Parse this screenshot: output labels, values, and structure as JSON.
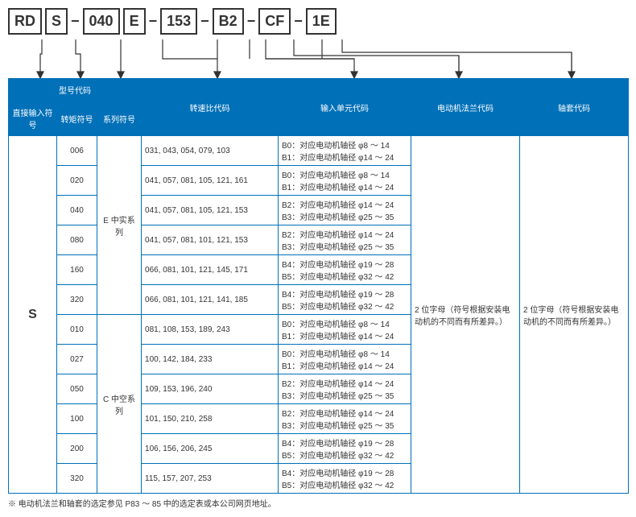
{
  "code_parts": [
    "RD",
    "S",
    "040",
    "E",
    "153",
    "B2",
    "CF",
    "1E"
  ],
  "dash": "−",
  "headers": {
    "group": "型号代码",
    "h1": "直接输入符号",
    "h2": "转矩符号",
    "h3": "系列符号",
    "h4": "转速比代码",
    "h5": "输入单元代码",
    "h6": "电动机法兰代码",
    "h7": "轴套代码"
  },
  "col1_value": "S",
  "series_e": "E 中实系列",
  "series_c": "C 中空系列",
  "flange_note": "2 位字母（符号根据安装电动机的不同而有所差异。）",
  "sleeve_note": "2 位字母（符号根据安装电动机的不同而有所差异。）",
  "rows": [
    {
      "torque": "006",
      "ratio": "031, 043, 054, 079, 103",
      "unit": "B0：对应电动机轴径 φ8 ～ 14\nB1：对应电动机轴径 φ14 ～ 24"
    },
    {
      "torque": "020",
      "ratio": "041, 057, 081, 105, 121, 161",
      "unit": "B0：对应电动机轴径 φ8 ～ 14\nB1：对应电动机轴径 φ14 ～ 24"
    },
    {
      "torque": "040",
      "ratio": "041, 057, 081, 105, 121, 153",
      "unit": "B2：对应电动机轴径 φ14 ～ 24\nB3：对应电动机轴径 φ25 ～ 35"
    },
    {
      "torque": "080",
      "ratio": "041, 057, 081, 101, 121, 153",
      "unit": "B2：对应电动机轴径 φ14 ～ 24\nB3：对应电动机轴径 φ25 ～ 35"
    },
    {
      "torque": "160",
      "ratio": "066, 081, 101, 121, 145, 171",
      "unit": "B4：对应电动机轴径 φ19 ～ 28\nB5：对应电动机轴径 φ32 ～ 42"
    },
    {
      "torque": "320",
      "ratio": "066, 081, 101, 121, 141, 185",
      "unit": "B4：对应电动机轴径 φ19 ～ 28\nB5：对应电动机轴径 φ32 ～ 42"
    },
    {
      "torque": "010",
      "ratio": "081, 108, 153, 189, 243",
      "unit": "B0：对应电动机轴径 φ8 ～ 14\nB1：对应电动机轴径 φ14 ～ 24"
    },
    {
      "torque": "027",
      "ratio": "100, 142, 184,  233",
      "unit": "B0：对应电动机轴径 φ8 ～ 14\nB1：对应电动机轴径 φ14 ～ 24"
    },
    {
      "torque": "050",
      "ratio": "109, 153, 196, 240",
      "unit": "B2：对应电动机轴径 φ14 ～ 24\nB3：对应电动机轴径 φ25 ～ 35"
    },
    {
      "torque": "100",
      "ratio": "101, 150, 210, 258",
      "unit": "B2：对应电动机轴径 φ14 ～ 24\nB3：对应电动机轴径 φ25 ～ 35"
    },
    {
      "torque": "200",
      "ratio": "106, 156, 206, 245",
      "unit": "B4：对应电动机轴径 φ19 ～ 28\nB5：对应电动机轴径 φ32 ～ 42"
    },
    {
      "torque": "320",
      "ratio": "115, 157, 207, 253",
      "unit": "B4：对应电动机轴径 φ19 ～ 28\nB5：对应电动机轴径 φ32 ～ 42"
    }
  ],
  "footnote": "※ 电动机法兰和轴套的选定参见 P83 ～ 85 中的选定表或本公司网页地址。",
  "colors": {
    "brand": "#0070b8",
    "line": "#333"
  }
}
